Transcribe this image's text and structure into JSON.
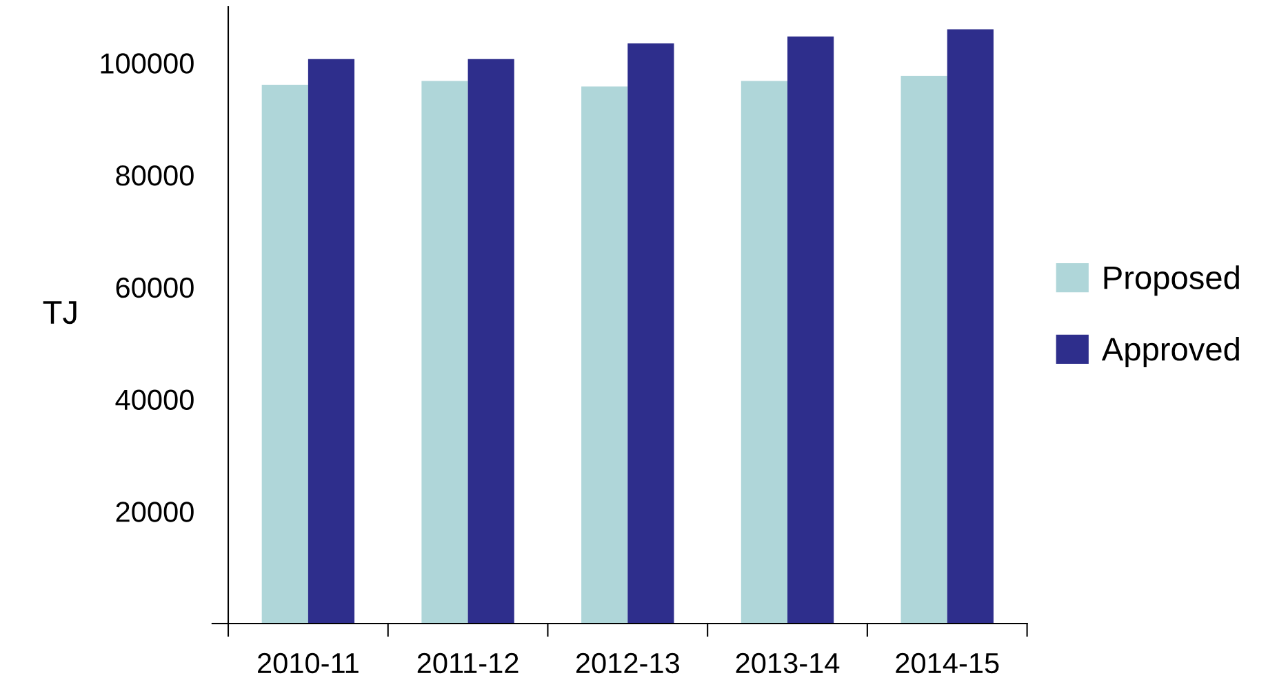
{
  "chart_data": {
    "type": "bar",
    "ylabel": "TJ",
    "categories": [
      "2010-11",
      "2011-12",
      "2012-13",
      "2013-14",
      "2014-15"
    ],
    "series": [
      {
        "name": "Proposed",
        "color": "#afd6d9",
        "values": [
          96100,
          96800,
          95800,
          96800,
          97700
        ]
      },
      {
        "name": "Approved",
        "color": "#2e2e8c",
        "values": [
          100700,
          100700,
          103500,
          104700,
          106000
        ]
      }
    ],
    "ylim": [
      0,
      110000
    ],
    "yticks": [
      {
        "value": 0,
        "label": null
      },
      20000,
      40000,
      60000,
      80000,
      100000
    ],
    "grid": false,
    "legend": "right"
  }
}
